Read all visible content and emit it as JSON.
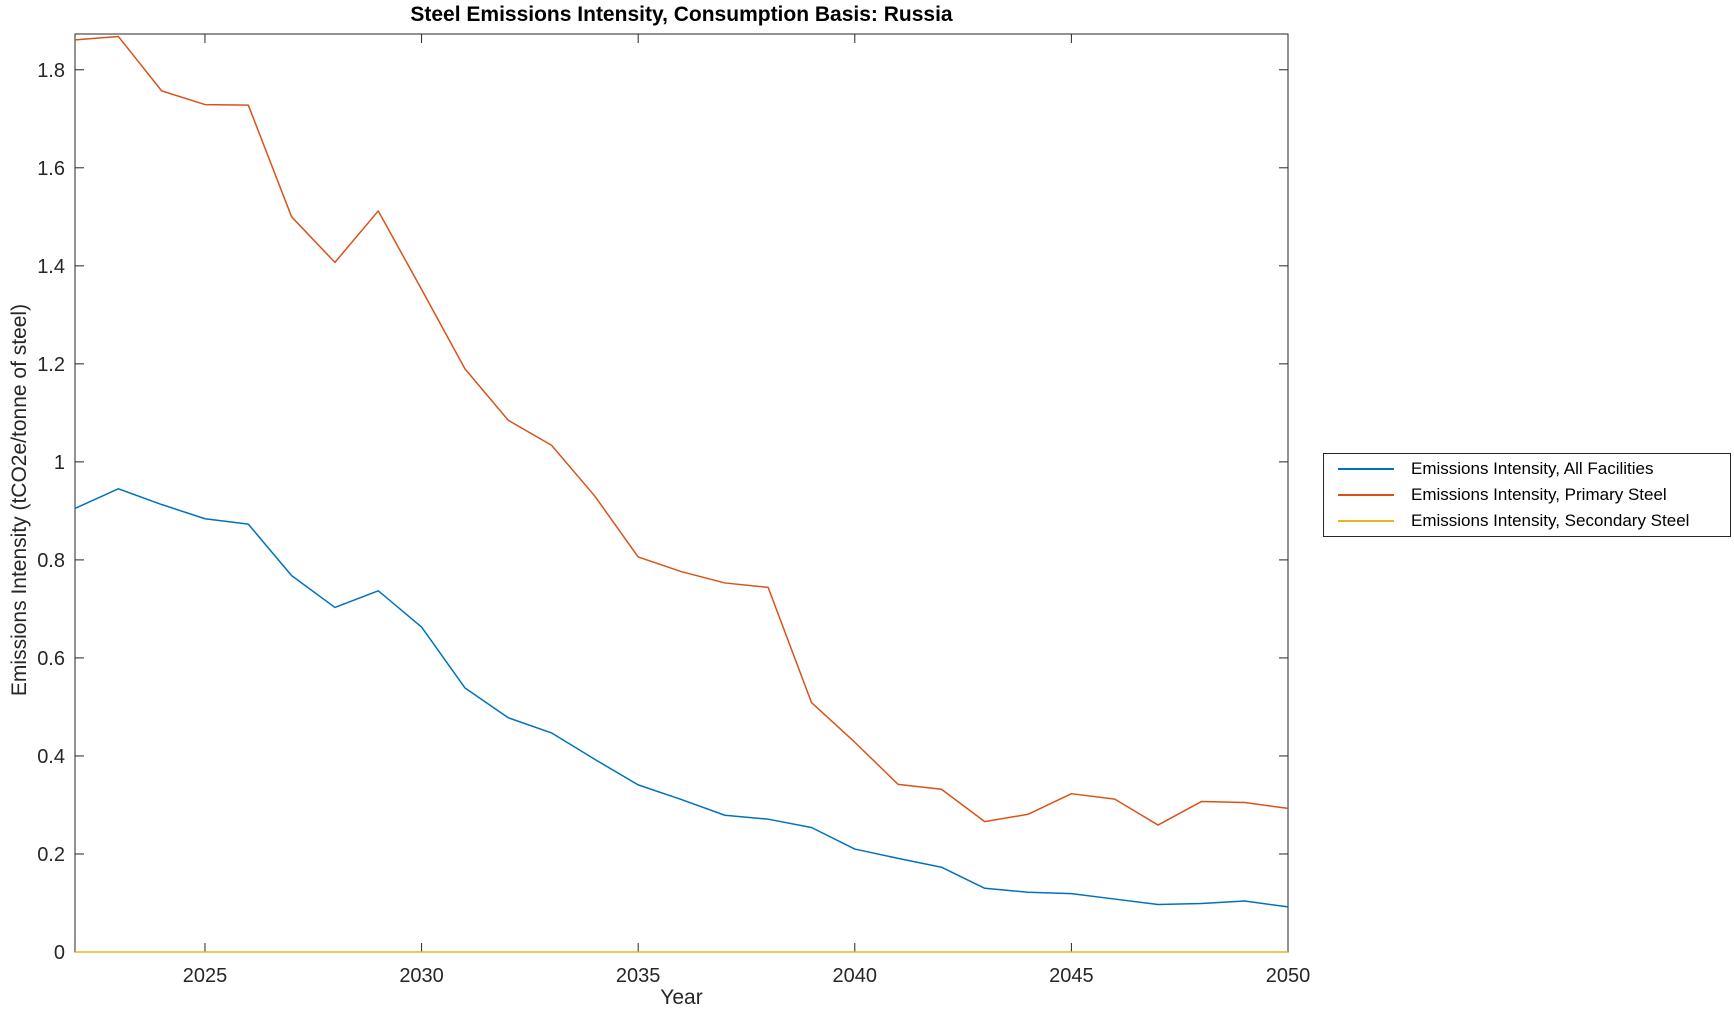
{
  "chart_data": {
    "type": "line",
    "title": "Steel Emissions Intensity, Consumption Basis: Russia",
    "xlabel": "Year",
    "ylabel": "Emissions Intensity (tCO2e/tonne of steel)",
    "x": [
      2022,
      2023,
      2024,
      2025,
      2026,
      2027,
      2028,
      2029,
      2030,
      2031,
      2032,
      2033,
      2034,
      2035,
      2036,
      2037,
      2038,
      2039,
      2040,
      2041,
      2042,
      2043,
      2044,
      2045,
      2046,
      2047,
      2048,
      2049,
      2050
    ],
    "series": [
      {
        "name": "Emissions Intensity, All Facilities",
        "color": "#0072BD",
        "values": [
          0.905,
          0.945,
          0.913,
          0.884,
          0.873,
          0.768,
          0.703,
          0.737,
          0.663,
          0.539,
          0.478,
          0.447,
          0.393,
          0.341,
          0.311,
          0.279,
          0.271,
          0.254,
          0.21,
          0.191,
          0.173,
          0.13,
          0.122,
          0.119,
          0.108,
          0.097,
          0.099,
          0.104,
          0.092
        ]
      },
      {
        "name": "Emissions Intensity, Primary Steel",
        "color": "#D95319",
        "values": [
          1.861,
          1.868,
          1.757,
          1.729,
          1.728,
          1.5,
          1.407,
          1.512,
          1.352,
          1.19,
          1.085,
          1.034,
          0.93,
          0.806,
          0.776,
          0.753,
          0.744,
          0.509,
          0.428,
          0.342,
          0.332,
          0.266,
          0.281,
          0.323,
          0.312,
          0.259,
          0.307,
          0.305,
          0.293
        ]
      },
      {
        "name": "Emissions Intensity, Secondary Steel",
        "color": "#EDB120",
        "values": [
          0,
          0,
          0,
          0,
          0,
          0,
          0,
          0,
          0,
          0,
          0,
          0,
          0,
          0,
          0,
          0,
          0,
          0,
          0,
          0,
          0,
          0,
          0,
          0,
          0,
          0,
          0,
          0,
          0
        ]
      }
    ],
    "xlim": [
      2022,
      2050
    ],
    "ylim": [
      0,
      1.873
    ],
    "xticks": [
      2025,
      2030,
      2035,
      2040,
      2045,
      2050
    ],
    "yticks": [
      0,
      0.2,
      0.4,
      0.6,
      0.8,
      1,
      1.2,
      1.4,
      1.6,
      1.8
    ],
    "grid": false,
    "legend_position": "outside-right",
    "axis_color": "#262626",
    "background_color": "#ffffff"
  },
  "legend": {
    "border_color": "#262626",
    "items": [
      {
        "label": "Emissions Intensity, All Facilities",
        "color": "#0072BD"
      },
      {
        "label": "Emissions Intensity, Primary Steel",
        "color": "#D95319"
      },
      {
        "label": "Emissions Intensity, Secondary Steel",
        "color": "#EDB120"
      }
    ]
  }
}
